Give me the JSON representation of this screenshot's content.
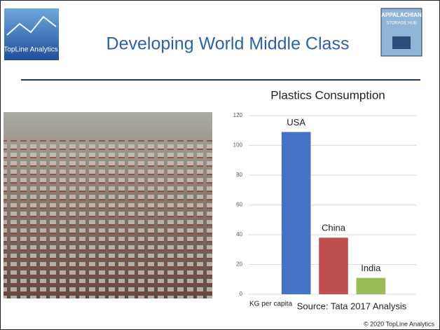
{
  "slide": {
    "title": "Developing World Middle Class",
    "logo_left": "TopLine Analytics",
    "logo_right_top": "APPALACHIAN",
    "logo_right_sub": "STORAGE HUB",
    "footer": "© 2020 TopLine Analytics"
  },
  "chart_data": {
    "type": "bar",
    "title": "Plastics Consumption",
    "categories": [
      "USA",
      "China",
      "India"
    ],
    "values": [
      109,
      38,
      11
    ],
    "colors": [
      "#4472c4",
      "#c0504d",
      "#9bbb59"
    ],
    "ylim": [
      0,
      120
    ],
    "yticks": [
      0,
      20,
      40,
      60,
      80,
      100,
      120
    ],
    "grid": true,
    "y_label": "KG per capita",
    "source": "Source: Tata 2017 Analysis"
  }
}
